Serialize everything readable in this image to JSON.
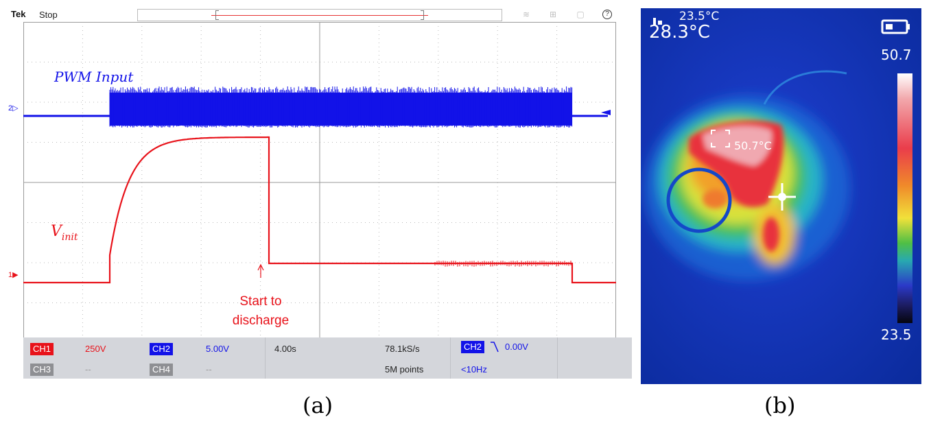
{
  "scope": {
    "brand": "Tek",
    "status": "Stop",
    "channel_markers": {
      "ch2": "2▷",
      "ch1": "1▶"
    },
    "annotations": {
      "pwm": "PWM Input",
      "vinit": "V",
      "vinit_sub": "init",
      "discharge_line1": "Start to",
      "discharge_line2": "discharge"
    },
    "readout": {
      "ch1_label": "CH1",
      "ch1_scale": "250V",
      "ch2_label": "CH2",
      "ch2_scale": "5.00V",
      "ch3_label": "CH3",
      "ch3_scale": "--",
      "ch4_label": "CH4",
      "ch4_scale": "--",
      "timebase": "4.00s",
      "sample_rate": "78.1kS/s",
      "record_length": "5M points",
      "trigger_source": "CH2",
      "trigger_level": "0.00V",
      "trigger_freq": "<10Hz"
    },
    "colors": {
      "ch1": "#e8121a",
      "ch2": "#1212e8"
    }
  },
  "thermal": {
    "min_temp_reading": "23.5°C",
    "center_temp_reading": "28.3°C",
    "scale_max": "50.7",
    "scale_min": "23.5",
    "hotspot_label": "50.7°C"
  },
  "captions": {
    "a": "(a)",
    "b": "(b)"
  }
}
